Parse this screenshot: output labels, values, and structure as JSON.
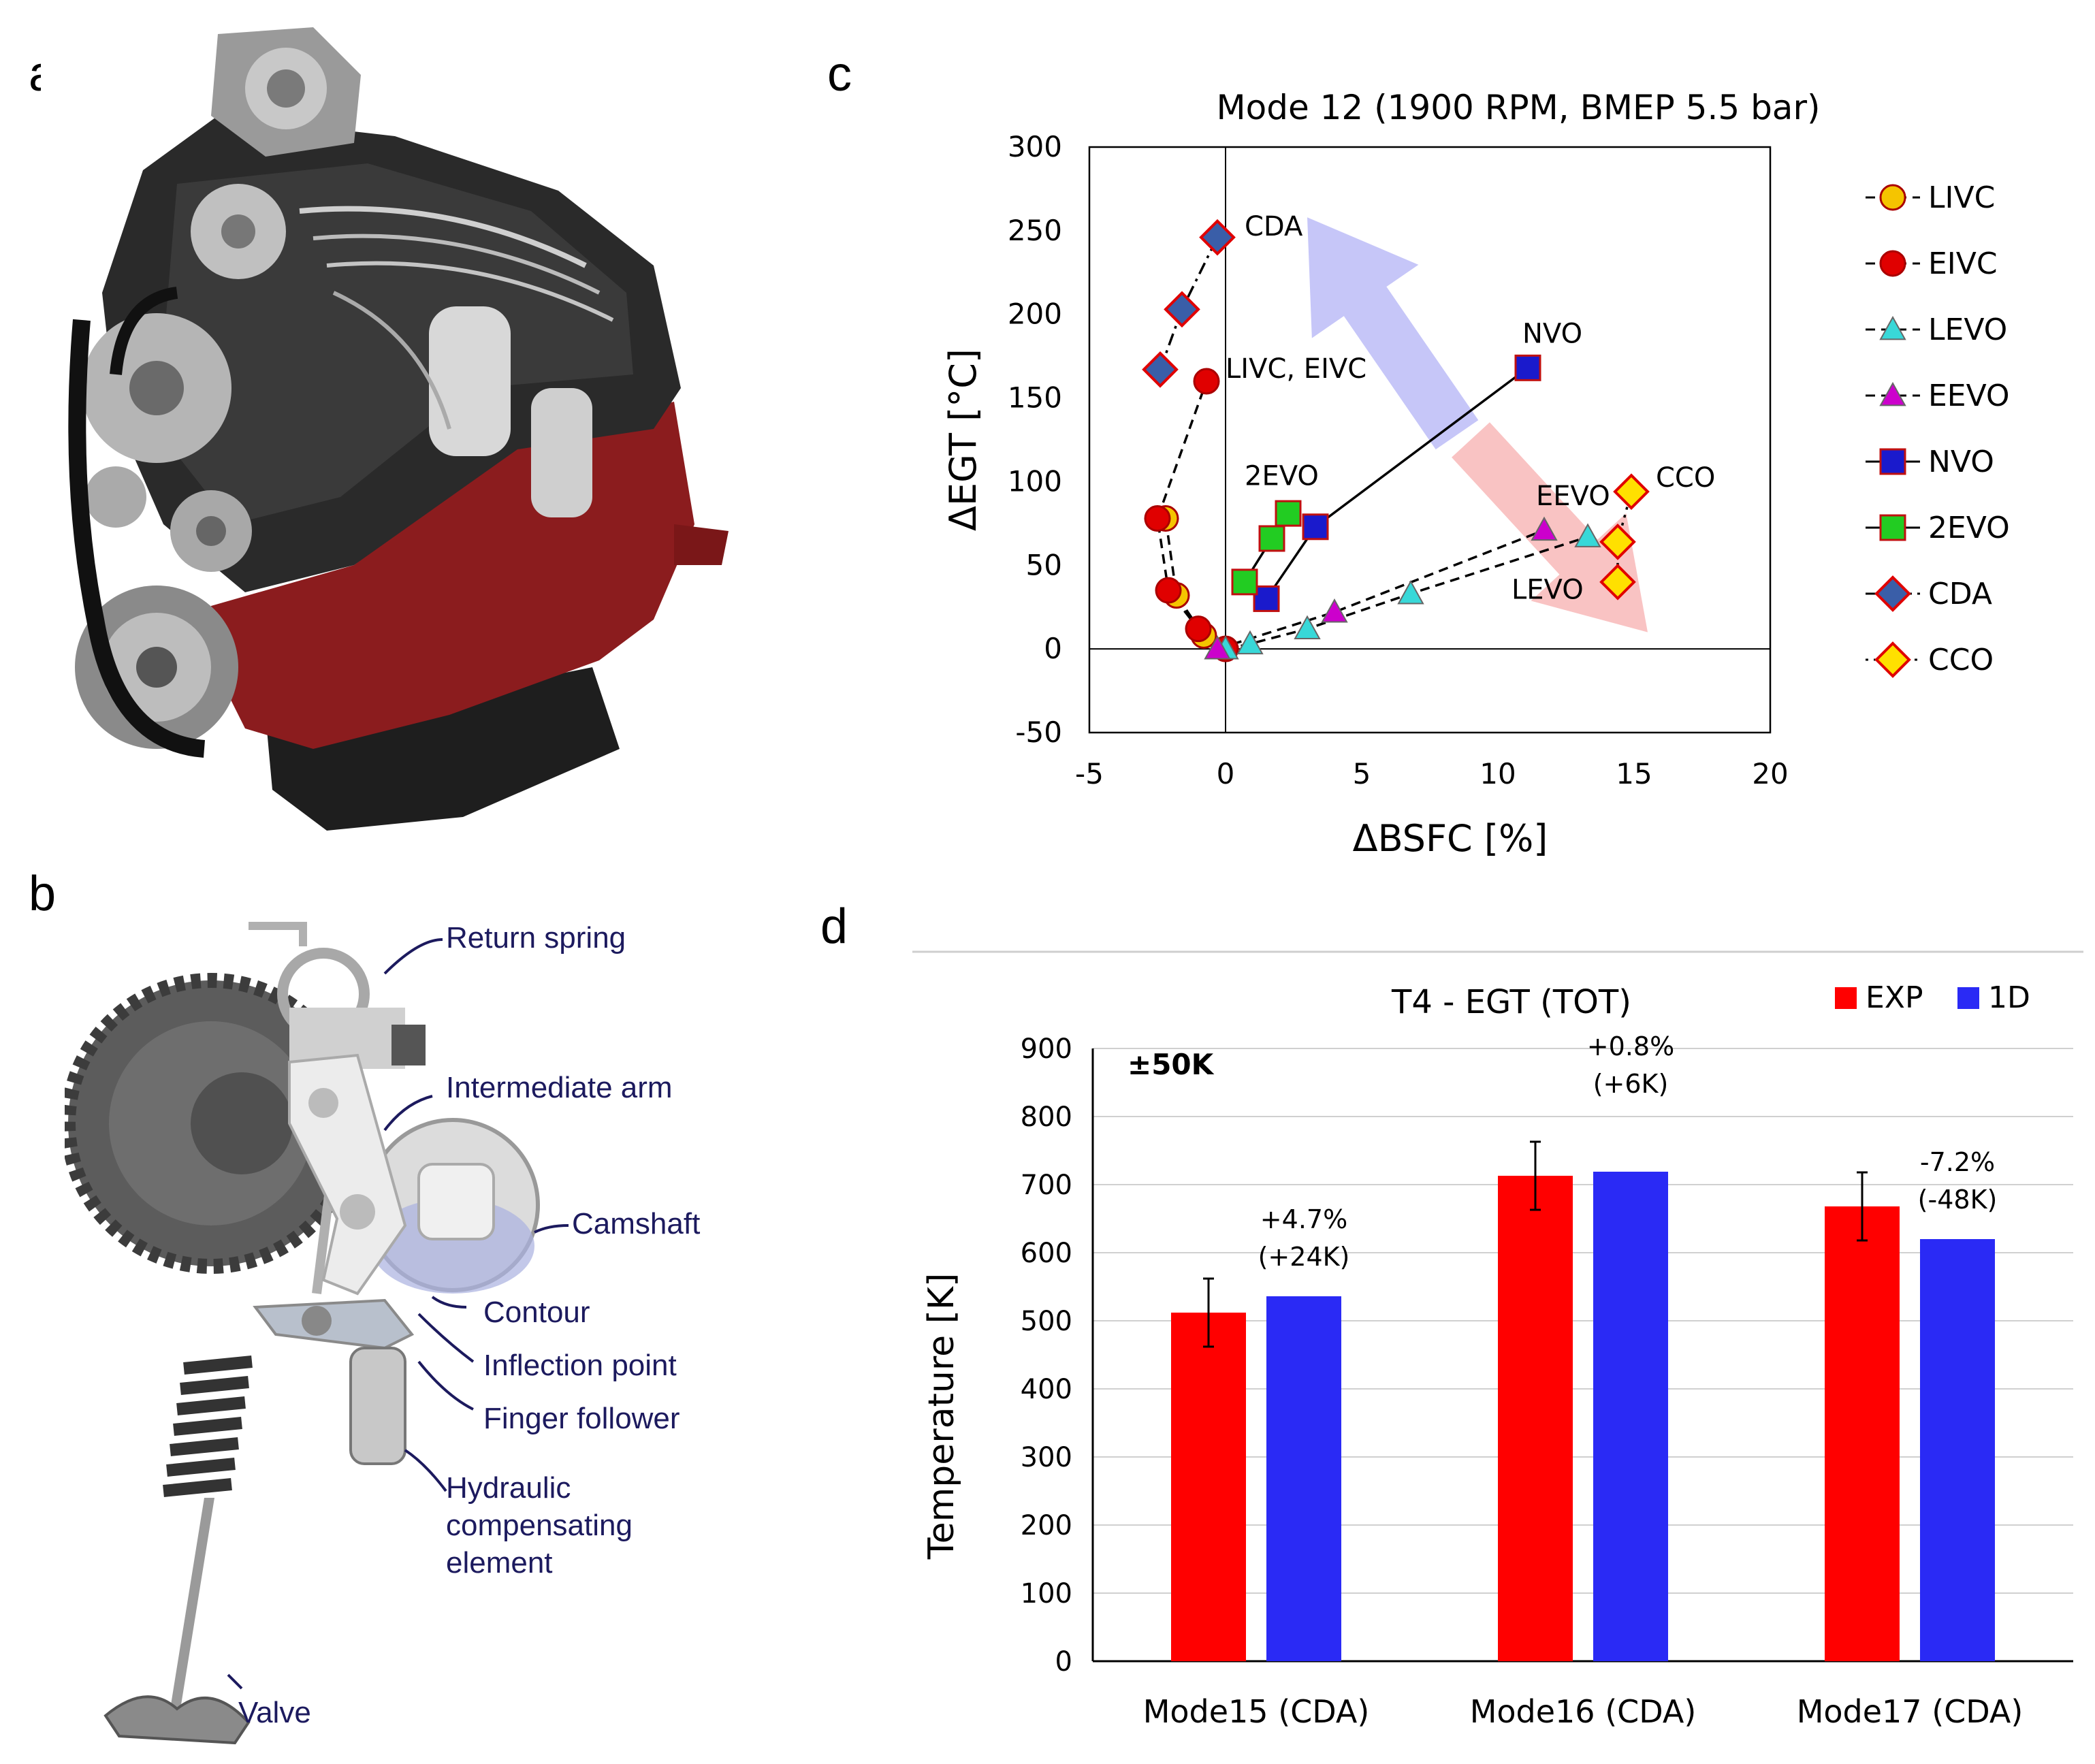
{
  "panels": {
    "a": {
      "letter": "a"
    },
    "b": {
      "letter": "b",
      "labels": [
        "Return spring",
        "Intermediate arm",
        "Camshaft",
        "Contour",
        "Inflection point",
        "Finger follower",
        "Hydraulic",
        "compensating",
        "element",
        "Valve"
      ]
    },
    "c": {
      "letter": "c"
    },
    "d": {
      "letter": "d"
    }
  },
  "colors": {
    "engine_red": "#8b1c1e",
    "exp": "#ff0000",
    "d1": "#2a2af5",
    "arrow_blue": "#9898f2",
    "arrow_red": "#f49292"
  },
  "chart_data": [
    {
      "type": "scatter",
      "title": "Mode 12 (1900 RPM, BMEP 5.5 bar)",
      "xlabel": "ΔBSFC [%]",
      "ylabel": "ΔEGT [°C]",
      "xlim": [
        -5,
        20
      ],
      "ylim": [
        -50,
        300
      ],
      "xticks": [
        "-5",
        "0",
        "5",
        "10",
        "15",
        "20"
      ],
      "yticks": [
        "-50",
        "0",
        "50",
        "100",
        "150",
        "200",
        "250",
        "300"
      ],
      "legend_position": "right",
      "series": [
        {
          "name": "LIVC",
          "marker": "circle",
          "color": "#f5c400",
          "line": "dashed",
          "points": [
            [
              0,
              0
            ],
            [
              -0.8,
              8
            ],
            [
              -1.8,
              32
            ],
            [
              -2.2,
              78
            ]
          ]
        },
        {
          "name": "EIVC",
          "marker": "circle",
          "color": "#e00000",
          "line": "dashed",
          "points": [
            [
              0,
              0
            ],
            [
              -1,
              12
            ],
            [
              -2.1,
              35
            ],
            [
              -2.5,
              78
            ],
            [
              -0.7,
              160
            ]
          ]
        },
        {
          "name": "LEVO",
          "marker": "triangle",
          "color": "#38d8d8",
          "line": "dashed",
          "points": [
            [
              0,
              0
            ],
            [
              0.9,
              3
            ],
            [
              3,
              12
            ],
            [
              6.8,
              33
            ],
            [
              13.3,
              67
            ]
          ]
        },
        {
          "name": "EEVO",
          "marker": "triangle",
          "color": "#cc00cc",
          "line": "dashed",
          "points": [
            [
              -0.3,
              0
            ],
            [
              4,
              22
            ],
            [
              11.7,
              71
            ]
          ]
        },
        {
          "name": "NVO",
          "marker": "square",
          "color": "#1a1acc",
          "line": "solid",
          "points": [
            [
              1.5,
              30
            ],
            [
              3.3,
              73
            ],
            [
              11.1,
              168
            ]
          ]
        },
        {
          "name": "2EVO",
          "marker": "square",
          "color": "#22cc22",
          "line": "solid",
          "points": [
            [
              0.7,
              40
            ],
            [
              1.7,
              66
            ],
            [
              2.3,
              81
            ]
          ]
        },
        {
          "name": "CDA",
          "marker": "diamond",
          "color": "#3a5ea8",
          "line": "dashdot",
          "points": [
            [
              -2.4,
              167
            ],
            [
              -1.6,
              203
            ],
            [
              -0.3,
              246
            ]
          ]
        },
        {
          "name": "CCO",
          "marker": "diamond",
          "color": "#ffe000",
          "line": "dotted",
          "points": [
            [
              14.4,
              40
            ],
            [
              14.4,
              64
            ],
            [
              14.9,
              94
            ]
          ]
        }
      ],
      "annotations": [
        "CDA",
        "LIVC, EIVC",
        "2EVO",
        "NVO",
        "EEVO",
        "LEVO",
        "CCO"
      ]
    },
    {
      "type": "bar",
      "title": "T4 - EGT (TOT)",
      "xlabel": "",
      "ylabel": "Temperature [K]",
      "ylim": [
        0,
        900
      ],
      "yticks": [
        "0",
        "100",
        "200",
        "300",
        "400",
        "500",
        "600",
        "700",
        "800",
        "900"
      ],
      "categories": [
        "Mode15 (CDA)",
        "Mode16 (CDA)",
        "Mode17 (CDA)"
      ],
      "series": [
        {
          "name": "EXP",
          "values": [
            512,
            713,
            668
          ],
          "error": 50
        },
        {
          "name": "1D",
          "values": [
            536,
            719,
            620
          ]
        }
      ],
      "annotation": "±50K",
      "data_labels": [
        [
          "+4.7%",
          "(+24K)"
        ],
        [
          "+0.8%",
          "(+6K)"
        ],
        [
          "-7.2%",
          "(-48K)"
        ]
      ],
      "legend_position": "top-right"
    }
  ]
}
